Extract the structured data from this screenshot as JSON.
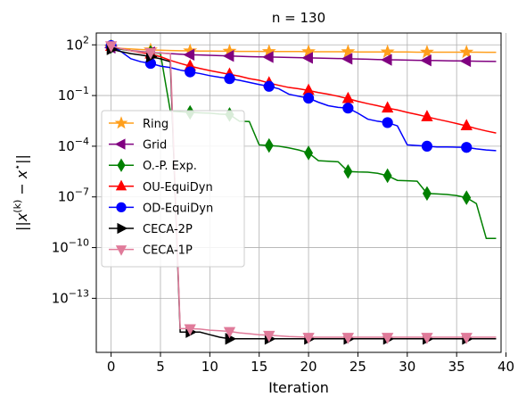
{
  "chart_data": {
    "type": "line",
    "title": "n = 130",
    "xlabel": "Iteration",
    "ylabel": "||x^(k) − x*||",
    "ylabel_parts": {
      "pre": "||",
      "x": "x",
      "sup": "(k)",
      "mid": " − ",
      "x2": "x",
      "sup2": "⋆",
      "post": "||"
    },
    "xlim": [
      -1.5,
      39.5
    ],
    "ylim_log10": [
      -16.2,
      2.7
    ],
    "y_scale": "log",
    "grid": true,
    "legend_position": "center-left",
    "xticks": [
      0,
      5,
      10,
      15,
      20,
      25,
      30,
      35,
      40
    ],
    "xtick_labels": [
      "0",
      "5",
      "10",
      "15",
      "20",
      "25",
      "30",
      "35",
      "40"
    ],
    "yticks_log10": [
      2,
      -1,
      -4,
      -7,
      -10,
      -13
    ],
    "ytick_bases": [
      "10",
      "10",
      "10",
      "10",
      "10",
      "10"
    ],
    "ytick_exps": [
      "2",
      "−1",
      "−4",
      "−7",
      "−10",
      "−13"
    ],
    "series": [
      {
        "name": "Ring",
        "color": "#ff9f1c",
        "marker": "star",
        "x": [
          0,
          1,
          2,
          3,
          4,
          5,
          6,
          7,
          8,
          9,
          10,
          11,
          12,
          13,
          14,
          15,
          16,
          17,
          18,
          19,
          20,
          21,
          22,
          23,
          24,
          25,
          26,
          27,
          28,
          29,
          30,
          31,
          32,
          33,
          34,
          35,
          36,
          37,
          38,
          39
        ],
        "y": [
          70,
          62,
          57,
          53,
          50,
          48,
          46,
          45,
          44,
          43,
          43,
          42,
          42,
          41,
          41,
          41,
          40,
          40,
          40,
          40,
          39,
          39,
          39,
          39,
          39,
          38,
          38,
          38,
          38,
          38,
          38,
          37,
          37,
          37,
          37,
          37,
          37,
          37,
          36,
          36
        ]
      },
      {
        "name": "Grid",
        "color": "#800080",
        "marker": "triangle-left",
        "x": [
          0,
          1,
          2,
          3,
          4,
          5,
          6,
          7,
          8,
          9,
          10,
          11,
          12,
          13,
          14,
          15,
          16,
          17,
          18,
          19,
          20,
          21,
          22,
          23,
          24,
          25,
          26,
          27,
          28,
          29,
          30,
          31,
          32,
          33,
          34,
          35,
          36,
          37,
          38,
          39
        ],
        "y": [
          68,
          55,
          46,
          40,
          36,
          33,
          30,
          28,
          26,
          25,
          24,
          23,
          22,
          21,
          20,
          19.5,
          19,
          18.5,
          18,
          17.5,
          17,
          16.5,
          16,
          15.5,
          15,
          14.5,
          14,
          13.5,
          13,
          12.8,
          12.5,
          12.2,
          12,
          11.7,
          11.4,
          11.2,
          11,
          10.8,
          10.6,
          10.4
        ]
      },
      {
        "name": "O.-P. Exp.",
        "color": "#008000",
        "marker": "diamond",
        "x": [
          0,
          1,
          2,
          3,
          4,
          5,
          6,
          7,
          8,
          9,
          10,
          11,
          12,
          13,
          14,
          15,
          16,
          17,
          18,
          19,
          20,
          21,
          22,
          23,
          24,
          25,
          26,
          27,
          28,
          29,
          30,
          31,
          32,
          33,
          34,
          35,
          36,
          37,
          38,
          39
        ],
        "y": [
          80,
          55,
          45,
          38,
          35,
          30,
          0.012,
          0.011,
          0.01,
          0.0095,
          0.009,
          0.008,
          0.0075,
          0.003,
          0.0029,
          0.00012,
          0.00011,
          0.0001,
          8e-05,
          6e-05,
          4e-05,
          1.4e-05,
          1.3e-05,
          1.2e-05,
          3.2e-06,
          3e-06,
          2.9e-06,
          2.5e-06,
          1.8e-06,
          9.5e-07,
          9e-07,
          8.5e-07,
          1.6e-07,
          1.5e-07,
          1.4e-07,
          1.2e-07,
          9e-08,
          4e-08,
          3.5e-10,
          3.5e-10
        ]
      },
      {
        "name": "OU-EquiDyn",
        "color": "#ff0000",
        "marker": "triangle-up",
        "x": [
          0,
          1,
          2,
          3,
          4,
          5,
          6,
          7,
          8,
          9,
          10,
          11,
          12,
          13,
          14,
          15,
          16,
          17,
          18,
          19,
          20,
          21,
          22,
          23,
          24,
          25,
          26,
          27,
          28,
          29,
          30,
          31,
          32,
          33,
          34,
          35,
          36,
          37,
          38,
          39
        ],
        "y": [
          80,
          60,
          45,
          35,
          28,
          20,
          12,
          8,
          5.5,
          4.0,
          3.0,
          2.3,
          1.8,
          1.4,
          1.0,
          0.8,
          0.55,
          0.4,
          0.3,
          0.25,
          0.2,
          0.15,
          0.12,
          0.09,
          0.065,
          0.045,
          0.033,
          0.025,
          0.018,
          0.014,
          0.01,
          0.0075,
          0.0055,
          0.004,
          0.003,
          0.0022,
          0.0016,
          0.0011,
          0.0008,
          0.0006
        ]
      },
      {
        "name": "OD-EquiDyn",
        "color": "#0000ff",
        "marker": "circle",
        "x": [
          0,
          1,
          2,
          3,
          4,
          5,
          6,
          7,
          8,
          9,
          10,
          11,
          12,
          13,
          14,
          15,
          16,
          17,
          18,
          19,
          20,
          21,
          22,
          23,
          24,
          25,
          26,
          27,
          28,
          29,
          30,
          31,
          32,
          33,
          34,
          35,
          36,
          37,
          38,
          39
        ],
        "y": [
          90,
          40,
          15,
          10,
          8,
          5.5,
          4.5,
          3.2,
          2.5,
          2.0,
          1.5,
          1.2,
          1.0,
          0.8,
          0.6,
          0.45,
          0.35,
          0.25,
          0.12,
          0.09,
          0.07,
          0.04,
          0.025,
          0.02,
          0.018,
          0.009,
          0.004,
          0.003,
          0.0025,
          0.0016,
          0.00012,
          0.00011,
          0.0001,
          9e-05,
          9e-05,
          8.8e-05,
          8.5e-05,
          7e-05,
          6e-05,
          5.5e-05
        ]
      },
      {
        "name": "CECA-2P",
        "color": "#000000",
        "marker": "triangle-right",
        "x": [
          0,
          1,
          2,
          3,
          4,
          5,
          6,
          7,
          8,
          9,
          10,
          11,
          12,
          13,
          14,
          15,
          16,
          17,
          18,
          19,
          20,
          21,
          22,
          23,
          24,
          25,
          26,
          27,
          28,
          29,
          30,
          31,
          32,
          33,
          34,
          35,
          36,
          37,
          38,
          39
        ],
        "y": [
          55,
          40,
          30,
          25,
          20,
          15,
          10,
          1e-15,
          1e-15,
          1e-15,
          7e-16,
          5e-16,
          4e-16,
          4e-16,
          4e-16,
          4e-16,
          4e-16,
          4e-16,
          4e-16,
          4e-16,
          4e-16,
          4e-16,
          4e-16,
          4e-16,
          4e-16,
          4e-16,
          4e-16,
          4e-16,
          4e-16,
          4e-16,
          4e-16,
          4e-16,
          4e-16,
          4e-16,
          4e-16,
          4e-16,
          4e-16,
          4e-16,
          4e-16,
          4e-16
        ]
      },
      {
        "name": "CECA-1P",
        "color": "#e07b9a",
        "marker": "triangle-down",
        "x": [
          0,
          1,
          2,
          3,
          4,
          5,
          6,
          7,
          8,
          9,
          10,
          11,
          12,
          13,
          14,
          15,
          16,
          17,
          18,
          19,
          20,
          21,
          22,
          23,
          24,
          25,
          26,
          27,
          28,
          29,
          30,
          31,
          32,
          33,
          34,
          35,
          36,
          37,
          38,
          39
        ],
        "y": [
          90,
          60,
          45,
          38,
          35,
          32,
          30,
          1.6e-15,
          1.6e-15,
          1.5e-15,
          1.3e-15,
          1.2e-15,
          1.1e-15,
          9e-16,
          8e-16,
          7e-16,
          6.5e-16,
          6e-16,
          5.5e-16,
          5.2e-16,
          5e-16,
          5e-16,
          5e-16,
          5e-16,
          5e-16,
          5e-16,
          5e-16,
          5e-16,
          5e-16,
          5e-16,
          5e-16,
          5e-16,
          5e-16,
          5e-16,
          5e-16,
          5e-16,
          5e-16,
          5e-16,
          5e-16,
          5e-16
        ]
      }
    ],
    "marker_x": [
      0,
      4,
      8,
      12,
      16,
      20,
      24,
      28,
      32,
      36
    ]
  }
}
